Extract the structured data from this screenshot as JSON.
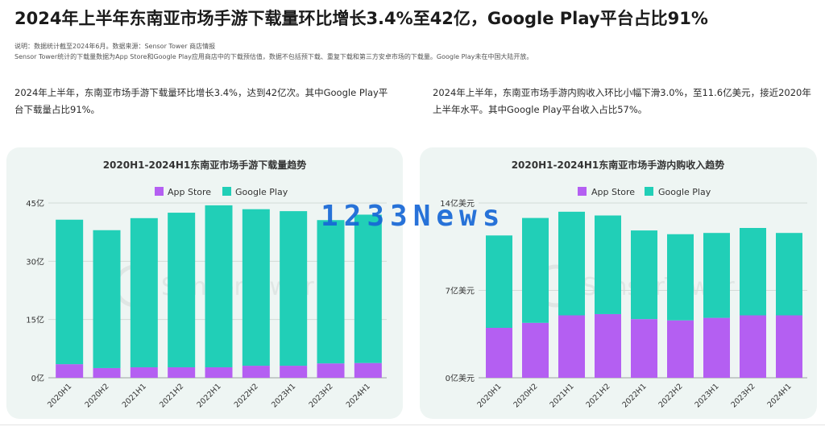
{
  "page": {
    "title": "2024年上半年东南亚市场手游下载量环比增长3.4%至42亿，Google Play平台占比91%",
    "note_line1": "说明：数据统计截至2024年6月。数据来源：Sensor Tower 商店情报",
    "note_line2": "Sensor Tower统计的下载量数据为App Store和Google Play应用商店中的下载预估值，数据不包括预下载、重复下载和第三方安卓市场的下载量。Google Play未在中国大陆开放。"
  },
  "left_text": "2024年上半年，东南亚市场手游下载量环比增长3.4%，达到42亿次。其中Google Play平台下载量占比91%。",
  "right_text": "2024年上半年，东南亚市场手游内购收入环比小幅下滑3.0%，至11.6亿美元，接近2020年上半年水平。其中Google Play平台收入占比57%。",
  "watermarks": {
    "overlay": "1233News",
    "brand": "SensorTower"
  },
  "chart_data": [
    {
      "type": "bar",
      "stacked": true,
      "title": "2020H1-2024H1东南亚市场手游下载量趋势",
      "categories": [
        "2020H1",
        "2020H2",
        "2021H1",
        "2021H2",
        "2022H1",
        "2022H2",
        "2023H1",
        "2023H2",
        "2024H1"
      ],
      "series": [
        {
          "name": "App Store",
          "color": "#b45ff2",
          "values": [
            3.5,
            2.5,
            2.7,
            2.7,
            2.7,
            3.1,
            3.1,
            3.7,
            3.8
          ]
        },
        {
          "name": "Google Play",
          "color": "#21cfb7",
          "values": [
            37.2,
            35.5,
            38.4,
            39.8,
            41.7,
            40.3,
            39.8,
            36.9,
            38.2
          ]
        }
      ],
      "ylim": [
        0,
        45
      ],
      "yticks": [
        0,
        15,
        30,
        45
      ],
      "ytick_labels": [
        "0亿",
        "15亿",
        "30亿",
        "45亿"
      ],
      "legend": "top-center",
      "grid": true
    },
    {
      "type": "bar",
      "stacked": true,
      "title": "2020H1-2024H1东南亚市场手游内购收入趋势",
      "categories": [
        "2020H1",
        "2020H2",
        "2021H1",
        "2021H2",
        "2022H1",
        "2022H2",
        "2023H1",
        "2023H2",
        "2024H1"
      ],
      "series": [
        {
          "name": "App Store",
          "color": "#b45ff2",
          "values": [
            4.0,
            4.4,
            5.0,
            5.1,
            4.7,
            4.6,
            4.8,
            5.0,
            5.0
          ]
        },
        {
          "name": "Google Play",
          "color": "#21cfb7",
          "values": [
            7.4,
            8.4,
            8.3,
            7.9,
            7.1,
            6.9,
            6.8,
            7.0,
            6.6
          ]
        }
      ],
      "ylim": [
        0,
        14
      ],
      "yticks": [
        0,
        7,
        14
      ],
      "ytick_labels": [
        "0亿美元",
        "7亿美元",
        "14亿美元"
      ],
      "legend": "top-center",
      "grid": true
    }
  ]
}
